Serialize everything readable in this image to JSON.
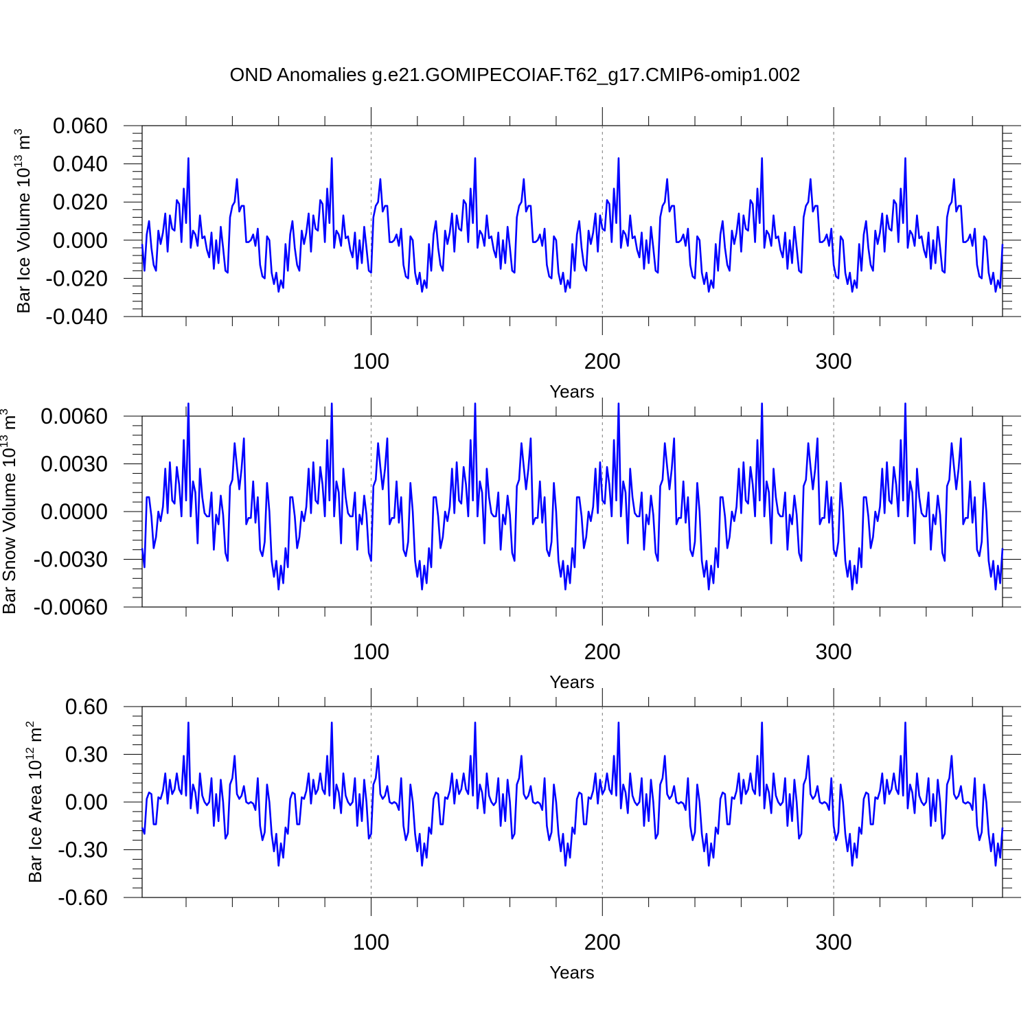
{
  "title": "OND Anomalies g.e21.GOMIPECOIAF.T62_g17.CMIP6-omip1.002",
  "chart_data": [
    {
      "type": "line",
      "title": "OND Anomalies g.e21.GOMIPECOIAF.T62_g17.CMIP6-omip1.002",
      "ylabel": "Bar Ice Volume 10",
      "ylabel_sup_exp": "13",
      "ylabel_unit": "m",
      "ylabel_unit_sup": "3",
      "xlabel": "Years",
      "xlim": [
        1,
        373
      ],
      "ylim": [
        -0.04,
        0.06
      ],
      "grid": "vertical dashed at 100, 200, 300",
      "xticks": [
        "100",
        "200",
        "300"
      ],
      "xtick_values": [
        100,
        200,
        300
      ],
      "yticks": [
        "-0.040",
        "-0.020",
        "0.000",
        "0.020",
        "0.040",
        "0.060"
      ],
      "ytick_values": [
        -0.04,
        -0.02,
        0.0,
        0.02,
        0.04,
        0.06
      ],
      "series": [
        {
          "name": "Bar Ice Volume",
          "color": "#0000ff",
          "period": 62,
          "values": [
            -0.002,
            -0.016,
            0.003,
            0.01,
            -0.004,
            -0.013,
            -0.016,
            0.005,
            -0.002,
            0.004,
            0.014,
            -0.006,
            0.013,
            0.006,
            0.005,
            0.021,
            0.019,
            -0.001,
            0.027,
            0.009,
            0.043,
            -0.004,
            0.005,
            0.003,
            -0.003,
            0.013,
            0.001,
            0.002,
            -0.005,
            -0.009,
            0.004,
            -0.015,
            0.0,
            -0.012,
            0.007,
            -0.004,
            -0.016,
            -0.017,
            0.012,
            0.018,
            0.02,
            0.032,
            0.015,
            0.018,
            0.018,
            -0.001,
            -0.001,
            0.0,
            0.003,
            -0.003,
            0.006,
            -0.013,
            -0.019,
            -0.02,
            0.002,
            0.0,
            -0.017,
            -0.023,
            -0.017,
            -0.027,
            -0.021,
            -0.025,
            -0.012,
            -0.017,
            0.001,
            0.008,
            -0.004,
            -0.014,
            -0.017
          ]
        }
      ]
    },
    {
      "type": "line",
      "ylabel": "Bar Snow Volume 10",
      "ylabel_sup_exp": "13",
      "ylabel_unit": "m",
      "ylabel_unit_sup": "3",
      "xlabel": "Years",
      "xlim": [
        1,
        373
      ],
      "ylim": [
        -0.006,
        0.006
      ],
      "grid": "vertical dashed at 100, 200, 300",
      "xticks": [
        "100",
        "200",
        "300"
      ],
      "xtick_values": [
        100,
        200,
        300
      ],
      "yticks": [
        "-0.0060",
        "-0.0030",
        "0.0000",
        "0.0030",
        "0.0060"
      ],
      "ytick_values": [
        -0.006,
        -0.003,
        0.0,
        0.003,
        0.006
      ],
      "series": [
        {
          "name": "Bar Snow Volume",
          "color": "#0000ff",
          "period": 62,
          "values": [
            -0.0023,
            -0.0035,
            0.0009,
            0.0009,
            -0.0003,
            -0.0023,
            -0.0016,
            0.0,
            -0.0006,
            0.0003,
            0.0027,
            -0.0001,
            0.0031,
            0.0007,
            0.0005,
            0.0028,
            0.0017,
            -0.0003,
            0.0045,
            0.0007,
            0.0068,
            -0.0003,
            0.0019,
            0.0012,
            -0.002,
            0.0027,
            0.0009,
            -0.0001,
            -0.0003,
            -0.0003,
            0.0012,
            -0.0024,
            -0.0002,
            -0.0008,
            0.001,
            -0.0002,
            -0.0026,
            -0.0031,
            0.0016,
            0.002,
            0.0043,
            0.0028,
            0.0014,
            0.0027,
            0.0046,
            -0.0008,
            -0.0004,
            -0.0004,
            0.0019,
            -0.0007,
            0.0009,
            -0.0024,
            -0.0028,
            -0.0019,
            0.0018,
            0.0,
            -0.0031,
            -0.0041,
            -0.0031,
            -0.0049,
            -0.0034,
            -0.0045,
            -0.0029,
            -0.003,
            0.0009,
            0.0008,
            0.0003,
            -0.0022,
            -0.0018
          ]
        }
      ]
    },
    {
      "type": "line",
      "ylabel": "Bar Ice Area 10",
      "ylabel_sup_exp": "12",
      "ylabel_unit": "m",
      "ylabel_unit_sup": "2",
      "xlabel": "Years",
      "xlim": [
        1,
        373
      ],
      "ylim": [
        -0.6,
        0.6
      ],
      "grid": "vertical dashed at 100, 200, 300",
      "xticks": [
        "100",
        "200",
        "300"
      ],
      "xtick_values": [
        100,
        200,
        300
      ],
      "yticks": [
        "-0.60",
        "-0.30",
        "0.00",
        "0.30",
        "0.60"
      ],
      "ytick_values": [
        -0.6,
        -0.3,
        0.0,
        0.3,
        0.6
      ],
      "series": [
        {
          "name": "Bar Ice Area",
          "color": "#0000ff",
          "period": 62,
          "values": [
            -0.16,
            -0.2,
            0.02,
            0.06,
            0.05,
            -0.14,
            -0.14,
            0.03,
            0.02,
            0.07,
            0.18,
            -0.01,
            0.14,
            0.05,
            0.08,
            0.18,
            0.08,
            0.05,
            0.29,
            0.04,
            0.5,
            -0.04,
            0.11,
            0.06,
            -0.07,
            0.18,
            0.04,
            0.0,
            -0.02,
            0.0,
            0.15,
            -0.15,
            0.05,
            -0.12,
            0.14,
            0.0,
            -0.23,
            -0.2,
            0.11,
            0.15,
            0.29,
            0.05,
            0.02,
            0.04,
            0.1,
            0.0,
            -0.01,
            0.0,
            -0.01,
            -0.05,
            0.15,
            -0.15,
            -0.24,
            -0.19,
            0.11,
            0.0,
            -0.2,
            -0.31,
            -0.2,
            -0.4,
            -0.26,
            -0.35,
            -0.2,
            -0.2,
            0.02,
            0.05,
            0.04,
            -0.16,
            -0.16
          ]
        }
      ]
    }
  ]
}
